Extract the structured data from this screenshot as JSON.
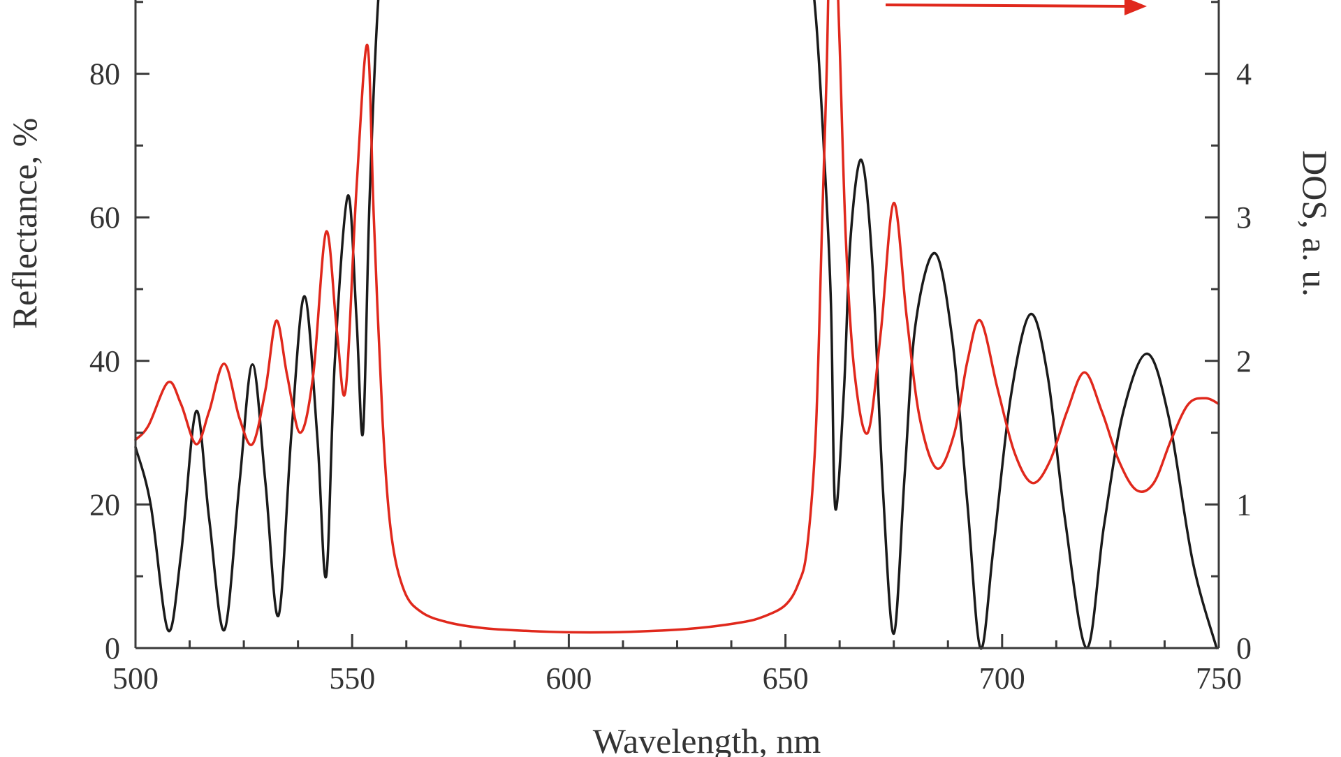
{
  "chart_data": {
    "type": "line",
    "title": "",
    "xlabel": "Wavelength, nm",
    "ylabel": "Reflectance, %",
    "y2label": "DOS, a. u.",
    "xlim": [
      500,
      750
    ],
    "ylim": [
      0,
      100
    ],
    "y2lim": [
      0,
      5
    ],
    "x_ticks": [
      500,
      550,
      600,
      650,
      700,
      750
    ],
    "y_ticks": [
      0,
      20,
      40,
      60,
      80
    ],
    "y2_ticks": [
      0,
      1,
      2,
      3,
      4
    ],
    "grid": false,
    "legend": "none",
    "annotations": [
      {
        "type": "arrow",
        "direction": "right",
        "meaning": "red curve uses right axis",
        "color": "#e0281c"
      }
    ],
    "series": [
      {
        "axis": "left",
        "color": "#1a1a1a",
        "x": [
          500,
          503.5,
          507.5,
          510.5,
          514,
          517,
          520.5,
          524,
          527,
          530,
          533,
          536,
          539,
          542,
          544,
          546,
          549,
          551,
          552.5,
          554,
          556,
          558,
          562,
          570,
          580,
          600,
          620,
          640,
          648,
          652,
          655,
          657,
          659,
          660.5,
          661.5,
          663.5,
          665,
          667.5,
          670,
          672.5,
          675,
          677.5,
          680,
          684.5,
          688.5,
          692,
          695,
          698,
          702,
          706.5,
          710.5,
          714.5,
          719.5,
          723.5,
          728,
          733.5,
          738.5,
          744,
          749.5
        ],
        "y": [
          28,
          20,
          2.5,
          13,
          33,
          18,
          2.5,
          23,
          39.5,
          23,
          4.5,
          30,
          49,
          29,
          10,
          40,
          63,
          46,
          30,
          62,
          90,
          100,
          100,
          100,
          100,
          100,
          100,
          100,
          100,
          100,
          97,
          88,
          68,
          48,
          19.5,
          36,
          57,
          68,
          54,
          22,
          2,
          24,
          45,
          55,
          43,
          20,
          0,
          14,
          35,
          46.5,
          38,
          18,
          0,
          17,
          33,
          41,
          32,
          12,
          0
        ]
      },
      {
        "axis": "right",
        "color": "#e0281c",
        "x": [
          500,
          503,
          507.5,
          510.5,
          514,
          517,
          520.5,
          524,
          527,
          530,
          532.5,
          535,
          538,
          541,
          544,
          546.5,
          548.5,
          551,
          553.5,
          555,
          557,
          559,
          562,
          566,
          572,
          580,
          590,
          600,
          610,
          620,
          630,
          640,
          645,
          650,
          653,
          655,
          657,
          658.5,
          659.5,
          660.3,
          661.5,
          662.5,
          664,
          666,
          669,
          672,
          675,
          678,
          681,
          685,
          689,
          692,
          695,
          699,
          703,
          707,
          711,
          715,
          719,
          723,
          727,
          731,
          735,
          739,
          743,
          747,
          750
        ],
        "y": [
          1.45,
          1.55,
          1.85,
          1.7,
          1.42,
          1.65,
          1.98,
          1.6,
          1.42,
          1.8,
          2.28,
          1.9,
          1.5,
          1.9,
          2.9,
          2.2,
          1.8,
          3.2,
          4.2,
          3.0,
          1.6,
          0.8,
          0.4,
          0.25,
          0.18,
          0.14,
          0.12,
          0.11,
          0.11,
          0.12,
          0.14,
          0.18,
          0.22,
          0.3,
          0.45,
          0.7,
          1.5,
          3.0,
          4.0,
          5.0,
          5.0,
          4.2,
          2.8,
          1.9,
          1.5,
          2.2,
          3.1,
          2.3,
          1.6,
          1.25,
          1.5,
          2.0,
          2.28,
          1.8,
          1.35,
          1.15,
          1.3,
          1.65,
          1.92,
          1.65,
          1.3,
          1.1,
          1.15,
          1.45,
          1.7,
          1.74,
          1.7
        ]
      }
    ]
  },
  "arrow_icon": "arrow-right-icon"
}
